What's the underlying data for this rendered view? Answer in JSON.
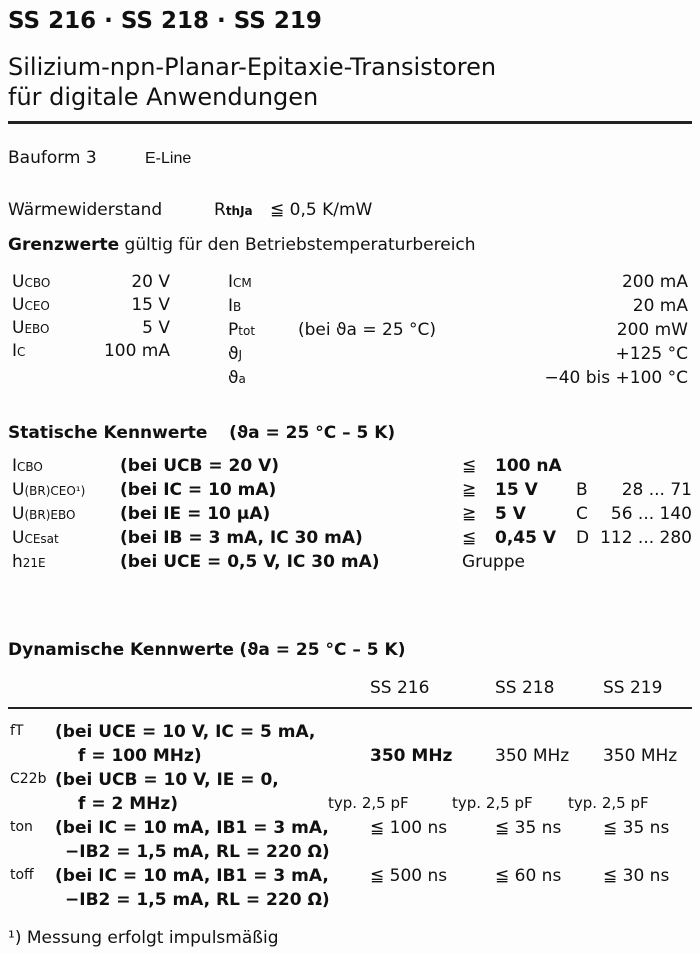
{
  "title": "SS 216 · SS 218 · SS 219",
  "subtitle1": "Silizium-npn-Planar-Epitaxie-Transistoren",
  "subtitle2": "für digitale Anwendungen",
  "bauform": "Bauform 3",
  "eline": "E-Line",
  "waerme": {
    "label": "Wärmewiderstand",
    "sym": "R",
    "sub": "thJa",
    "value": "≦ 0,5 K/mW"
  },
  "grenz": {
    "heading": "Grenzwerte",
    "rest": "gültig für den Betriebstemperaturbereich",
    "left": [
      {
        "sym": "U",
        "sub": "CBO",
        "val": "20 V"
      },
      {
        "sym": "U",
        "sub": "CEO",
        "val": "15 V"
      },
      {
        "sym": "U",
        "sub": "EBO",
        "val": "5 V"
      },
      {
        "sym": "I",
        "sub": "C",
        "val": "100 mA"
      }
    ],
    "right": [
      {
        "sym": "I",
        "sub": "CM",
        "cond": "",
        "val": "200 mA"
      },
      {
        "sym": "I",
        "sub": "B",
        "cond": "",
        "val": "20 mA"
      },
      {
        "sym": "P",
        "sub": "tot",
        "cond": "(bei ϑa = 25 °C)",
        "val": "200 mW"
      },
      {
        "sym": "ϑ",
        "sub": "J",
        "cond": "",
        "val": "+125 °C"
      },
      {
        "sym": "ϑ",
        "sub": "a",
        "cond": "",
        "val": "−40 bis +100 °C"
      }
    ]
  },
  "statisch": {
    "heading": "Statische Kennwerte",
    "cond": "(ϑa = 25 °C – 5 K)",
    "rows": [
      {
        "sym": "I",
        "sub": "CBO",
        "cond": "(bei UCB = 20 V)",
        "rel": "≦",
        "val": "100 nA"
      },
      {
        "sym": "U",
        "sub": "(BR)CEO¹)",
        "cond": "(bei IC   = 10 mA)",
        "rel": "≧",
        "val": "15 V"
      },
      {
        "sym": "U",
        "sub": "(BR)EBO",
        "cond": "(bei IE   = 10 µA)",
        "rel": "≧",
        "val": "5 V"
      },
      {
        "sym": "U",
        "sub": "CEsat",
        "cond": "(bei IB   =  3 mA, IC 30 mA)",
        "rel": "≦",
        "val": "0,45 V"
      },
      {
        "sym": "h",
        "sub": "21E",
        "cond": "(bei UCE =  0,5 V, IC 30 mA)",
        "rel": "Gruppe",
        "val": ""
      }
    ],
    "gruppen": [
      {
        "g": "B",
        "range": "28 ... 71"
      },
      {
        "g": "C",
        "range": "56 ... 140"
      },
      {
        "g": "D",
        "range": "112 ... 280"
      }
    ]
  },
  "dynamisch": {
    "heading": "Dynamische Kennwerte",
    "cond": "(ϑa = 25 °C – 5 K)",
    "cols": [
      "SS 216",
      "SS 218",
      "SS 219"
    ],
    "rows": [
      {
        "sym": "fT",
        "l1": "(bei UCE = 10 V, IC = 5 mA,",
        "l2": "f = 100 MHz)",
        "v": [
          "350 MHz",
          "350 MHz",
          "350 MHz"
        ]
      },
      {
        "sym": "C22b",
        "l1": "(bei UCB = 10 V, IE = 0,",
        "l2": "f = 2 MHz)",
        "v": [
          "typ. 2,5 pF",
          "typ. 2,5 pF",
          "typ. 2,5 pF"
        ]
      },
      {
        "sym": "ton",
        "l1": "(bei IC = 10 mA, IB1 = 3 mA,",
        "l2": "−IB2 = 1,5 mA, RL = 220 Ω)",
        "v": [
          "≦ 100 ns",
          "≦ 35 ns",
          "≦ 35 ns"
        ]
      },
      {
        "sym": "toff",
        "l1": "(bei IC = 10 mA, IB1 = 3 mA,",
        "l2": "−IB2 = 1,5 mA, RL = 220 Ω)",
        "v": [
          "≦ 500 ns",
          "≦ 60 ns",
          "≦ 30 ns"
        ]
      }
    ]
  },
  "footnote": "¹) Messung erfolgt impulsmäßig"
}
